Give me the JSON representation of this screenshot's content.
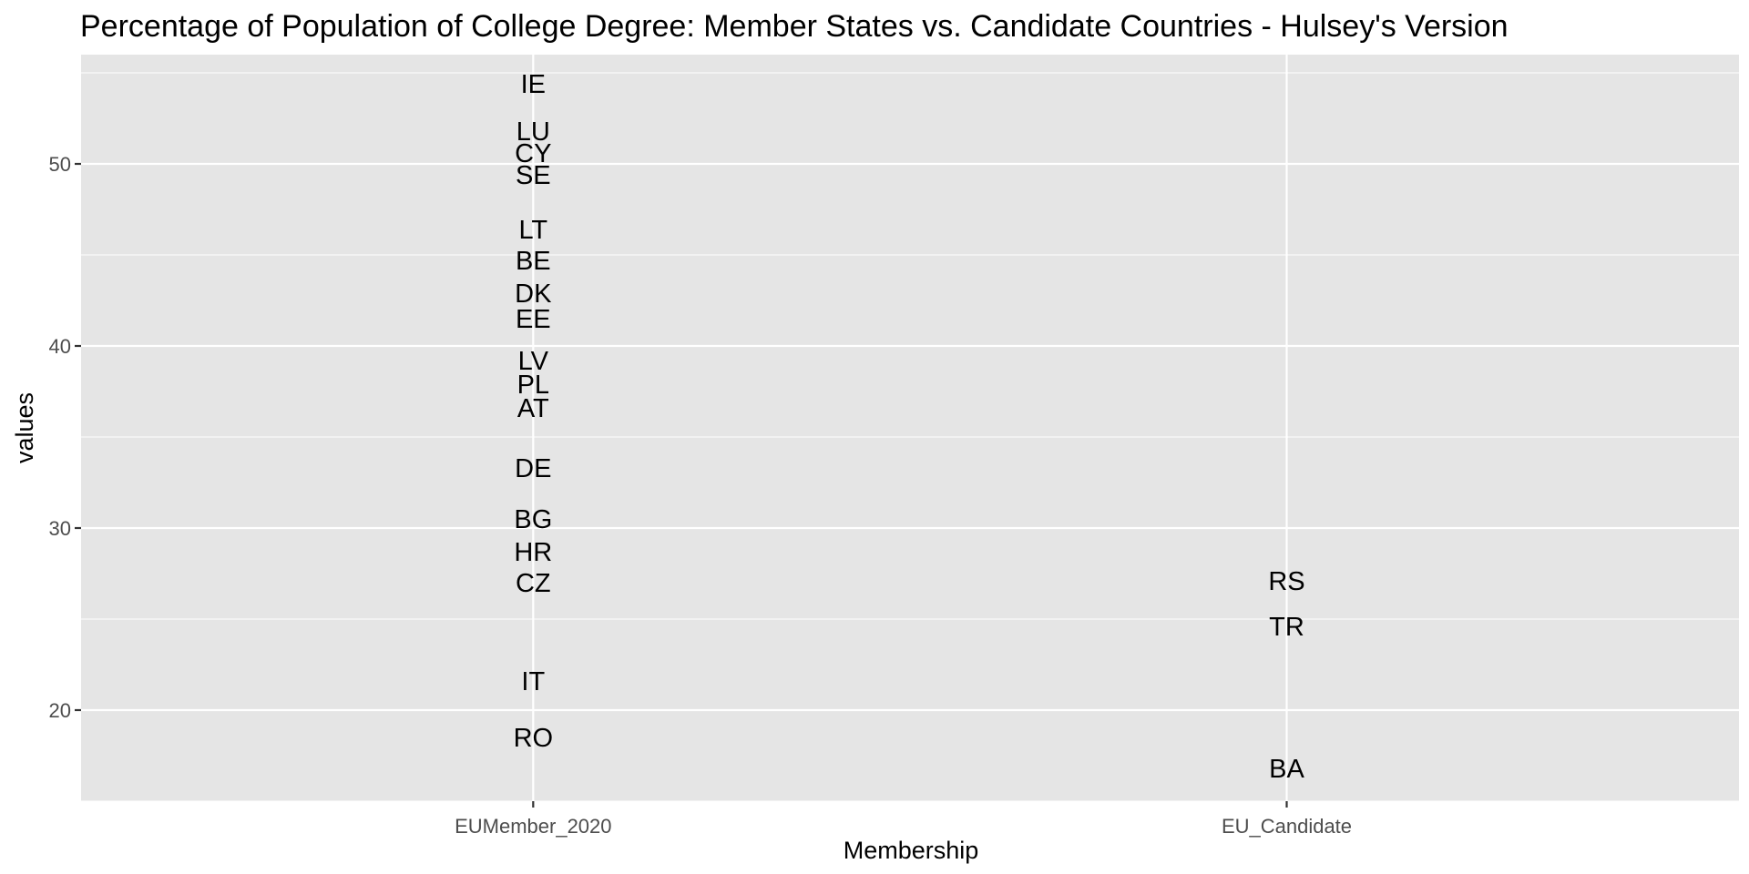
{
  "chart_data": {
    "type": "scatter",
    "title": "Percentage of Population of College Degree: Member States vs. Candidate Countries - Hulsey's Version",
    "xlabel": "Membership",
    "ylabel": "values",
    "categories": [
      "EUMember_2020",
      "EU_Candidate"
    ],
    "ylim": [
      15,
      56
    ],
    "yticks": [
      20,
      30,
      40,
      50
    ],
    "grid": true,
    "legend": "none",
    "colors": {
      "panel": "#e5e5e5",
      "grid": "#ffffff",
      "text": "#000000",
      "tick_text": "#4d4d4d",
      "tick_mark": "#333333"
    },
    "points": [
      {
        "category": "EUMember_2020",
        "label": "IE",
        "value": 54.4
      },
      {
        "category": "EUMember_2020",
        "label": "LU",
        "value": 51.8
      },
      {
        "category": "EUMember_2020",
        "label": "CY",
        "value": 50.6
      },
      {
        "category": "EUMember_2020",
        "label": "SE",
        "value": 49.4
      },
      {
        "category": "EUMember_2020",
        "label": "LT",
        "value": 46.4
      },
      {
        "category": "EUMember_2020",
        "label": "BE",
        "value": 44.7
      },
      {
        "category": "EUMember_2020",
        "label": "DK",
        "value": 42.9
      },
      {
        "category": "EUMember_2020",
        "label": "EE",
        "value": 41.5
      },
      {
        "category": "EUMember_2020",
        "label": "LV",
        "value": 39.2
      },
      {
        "category": "EUMember_2020",
        "label": "PL",
        "value": 37.9
      },
      {
        "category": "EUMember_2020",
        "label": "AT",
        "value": 36.6
      },
      {
        "category": "EUMember_2020",
        "label": "DE",
        "value": 33.3
      },
      {
        "category": "EUMember_2020",
        "label": "BG",
        "value": 30.5
      },
      {
        "category": "EUMember_2020",
        "label": "HR",
        "value": 28.7
      },
      {
        "category": "EUMember_2020",
        "label": "CZ",
        "value": 27.0
      },
      {
        "category": "EUMember_2020",
        "label": "IT",
        "value": 21.6
      },
      {
        "category": "EUMember_2020",
        "label": "RO",
        "value": 18.5
      },
      {
        "category": "EU_Candidate",
        "label": "RS",
        "value": 27.1
      },
      {
        "category": "EU_Candidate",
        "label": "TR",
        "value": 24.6
      },
      {
        "category": "EU_Candidate",
        "label": "BA",
        "value": 16.8
      }
    ]
  }
}
